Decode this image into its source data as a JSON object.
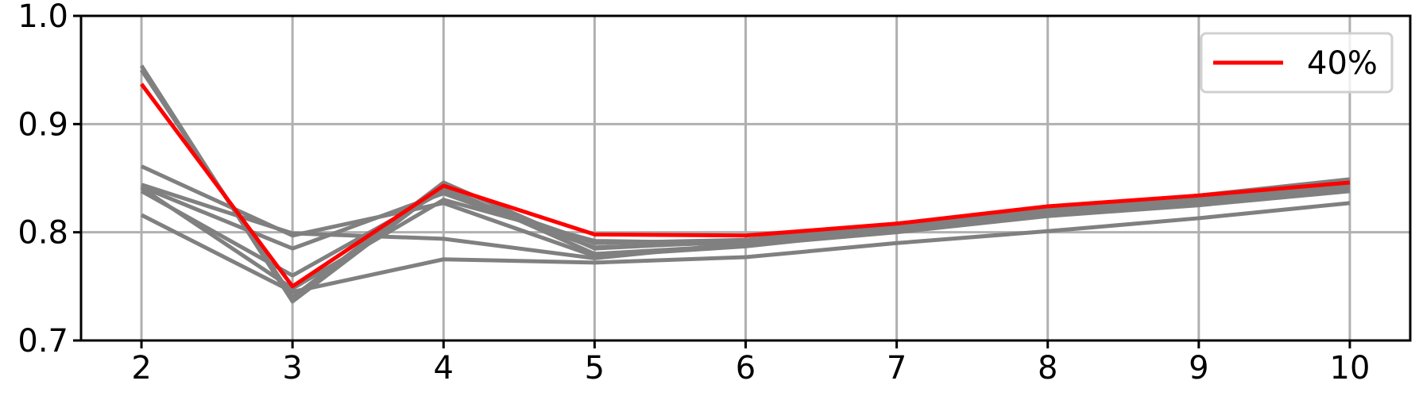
{
  "chart_data": {
    "type": "line",
    "title": "",
    "xlabel": "",
    "ylabel": "",
    "x": [
      2,
      3,
      4,
      5,
      6,
      7,
      8,
      9,
      10
    ],
    "xlim": [
      1.6,
      10.4
    ],
    "ylim": [
      0.7,
      1.0
    ],
    "xticks": [
      "2",
      "3",
      "4",
      "5",
      "6",
      "7",
      "8",
      "9",
      "10"
    ],
    "yticks": [
      "0.7",
      "0.8",
      "0.9",
      "1.0"
    ],
    "ytick_values": [
      0.7,
      0.8,
      0.9,
      1.0
    ],
    "grid": true,
    "legend": {
      "placement": "top-right",
      "entries": [
        "40%"
      ]
    },
    "series": [
      {
        "values": [
          0.954,
          0.736,
          0.842,
          0.78,
          0.788,
          0.8,
          0.815,
          0.825,
          0.838
        ],
        "color": "#808080"
      },
      {
        "values": [
          0.95,
          0.74,
          0.846,
          0.785,
          0.792,
          0.804,
          0.818,
          0.83,
          0.841
        ],
        "color": "#808080"
      },
      {
        "values": [
          0.861,
          0.797,
          0.827,
          0.778,
          0.787,
          0.802,
          0.817,
          0.828,
          0.84
        ],
        "color": "#808080"
      },
      {
        "values": [
          0.844,
          0.799,
          0.794,
          0.776,
          0.79,
          0.806,
          0.82,
          0.834,
          0.846
        ],
        "color": "#808080"
      },
      {
        "values": [
          0.838,
          0.76,
          0.838,
          0.79,
          0.793,
          0.808,
          0.821,
          0.834,
          0.849
        ],
        "color": "#808080"
      },
      {
        "values": [
          0.841,
          0.748,
          0.83,
          0.792,
          0.79,
          0.802,
          0.822,
          0.832,
          0.842
        ],
        "color": "#808080"
      },
      {
        "values": [
          0.842,
          0.785,
          0.836,
          0.786,
          0.791,
          0.806,
          0.819,
          0.833,
          0.845
        ],
        "color": "#808080"
      },
      {
        "values": [
          0.816,
          0.745,
          0.775,
          0.772,
          0.777,
          0.79,
          0.801,
          0.813,
          0.827
        ],
        "color": "#808080"
      },
      {
        "name": "40%",
        "values": [
          0.937,
          0.75,
          0.843,
          0.798,
          0.797,
          0.808,
          0.824,
          0.834,
          0.846
        ],
        "color": "#ff0000"
      }
    ]
  }
}
